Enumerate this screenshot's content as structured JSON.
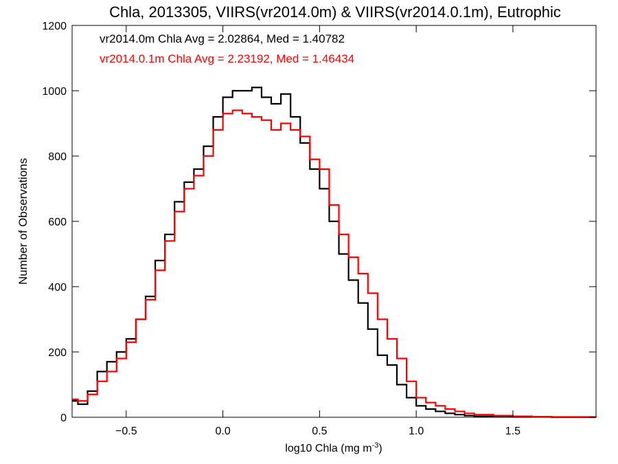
{
  "chart_data": {
    "type": "line",
    "title": "Chla, 2013305, VIIRS(vr2014.0m) & VIIRS(vr2014.0.1m), Eutrophic",
    "xlabel_main": "log10 Chla (mg m",
    "xlabel_sup": "-3",
    "xlabel_tail": ")",
    "ylabel": "Number of Observations",
    "xlim": [
      -0.78,
      1.93
    ],
    "ylim": [
      0,
      1200
    ],
    "x_ticks": [
      -0.5,
      0.0,
      0.5,
      1.0,
      1.5
    ],
    "x_tick_labels": [
      "−0.5",
      "0.0",
      "0.5",
      "1.0",
      "1.5"
    ],
    "y_ticks": [
      0,
      200,
      400,
      600,
      800,
      1000,
      1200
    ],
    "y_tick_labels": [
      "0",
      "200",
      "400",
      "600",
      "800",
      "1000",
      "1200"
    ],
    "grid": false,
    "legend_placement": "top-left",
    "annotations": [
      {
        "text": "vr2014.0m Chla Avg = 2.02864, Med = 1.40782",
        "color": "#000000"
      },
      {
        "text": "vr2014.0.1m Chla Avg = 2.23192, Med = 1.46434",
        "color": "#ff0000"
      }
    ],
    "series": [
      {
        "color": "#000000",
        "x": [
          -0.78,
          -0.75,
          -0.7,
          -0.65,
          -0.6,
          -0.55,
          -0.5,
          -0.45,
          -0.4,
          -0.35,
          -0.3,
          -0.25,
          -0.2,
          -0.15,
          -0.1,
          -0.05,
          0.0,
          0.05,
          0.1,
          0.15,
          0.2,
          0.25,
          0.3,
          0.35,
          0.4,
          0.45,
          0.5,
          0.55,
          0.6,
          0.65,
          0.7,
          0.75,
          0.8,
          0.85,
          0.9,
          0.95,
          1.0,
          1.05,
          1.1,
          1.15,
          1.2,
          1.25,
          1.3,
          1.4,
          1.5,
          1.6,
          1.7,
          1.8,
          1.93
        ],
        "y": [
          50,
          40,
          80,
          140,
          170,
          200,
          240,
          300,
          370,
          480,
          560,
          660,
          720,
          760,
          830,
          920,
          980,
          1000,
          1000,
          1010,
          980,
          960,
          990,
          920,
          840,
          760,
          700,
          600,
          500,
          420,
          350,
          270,
          190,
          160,
          100,
          60,
          35,
          25,
          18,
          12,
          8,
          5,
          3,
          2,
          1,
          1,
          0,
          0,
          0
        ]
      },
      {
        "color": "#ff0000",
        "x": [
          -0.78,
          -0.75,
          -0.7,
          -0.65,
          -0.6,
          -0.55,
          -0.5,
          -0.45,
          -0.4,
          -0.35,
          -0.3,
          -0.25,
          -0.2,
          -0.15,
          -0.1,
          -0.05,
          0.0,
          0.05,
          0.1,
          0.15,
          0.2,
          0.25,
          0.3,
          0.35,
          0.4,
          0.45,
          0.5,
          0.55,
          0.6,
          0.65,
          0.7,
          0.75,
          0.8,
          0.85,
          0.9,
          0.95,
          1.0,
          1.05,
          1.1,
          1.15,
          1.2,
          1.25,
          1.3,
          1.4,
          1.5,
          1.6,
          1.7,
          1.8,
          1.93
        ],
        "y": [
          55,
          50,
          70,
          110,
          140,
          180,
          230,
          300,
          360,
          450,
          540,
          630,
          700,
          740,
          800,
          880,
          930,
          940,
          930,
          920,
          910,
          880,
          900,
          880,
          860,
          790,
          760,
          650,
          560,
          490,
          440,
          380,
          300,
          240,
          180,
          110,
          60,
          45,
          35,
          25,
          18,
          12,
          8,
          5,
          3,
          2,
          1,
          1,
          0
        ]
      }
    ]
  }
}
